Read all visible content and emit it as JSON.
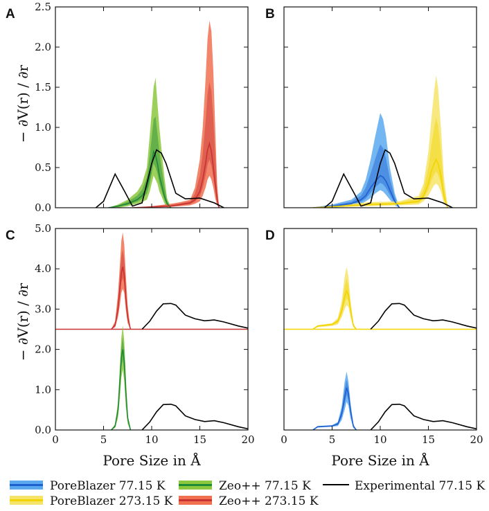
{
  "chart_data": {
    "type": "line",
    "colors": {
      "pb77": "#1f5fd0",
      "pb77_light": "#5aa9ee",
      "pb273": "#f2d400",
      "pb273_light": "#f6e46a",
      "zeo77": "#1e8a36",
      "zeo77_light": "#8cc83e",
      "zeo273": "#c83232",
      "zeo273_light": "#f07050",
      "experimental": "#000000"
    },
    "legend": {
      "placement": "bottom",
      "entries": [
        {
          "key": "pb77",
          "label": "PoreBlazer  77.15 K"
        },
        {
          "key": "pb273",
          "label": "PoreBlazer 273.15 K"
        },
        {
          "key": "zeo77",
          "label": "Zeo++  77.15 K"
        },
        {
          "key": "zeo273",
          "label": "Zeo++ 273.15 K"
        },
        {
          "key": "experimental",
          "label": "Experimental 77.15 K"
        }
      ]
    },
    "xlabel": "Pore Size in Å",
    "ylabel": "− ∂V(r) / ∂r",
    "xlim": [
      0,
      20
    ],
    "xticks": [
      0,
      5,
      10,
      15,
      20
    ],
    "panels": [
      {
        "id": "A",
        "ylim": [
          0,
          2.5
        ],
        "yticks": [
          "0.0",
          "0.5",
          "1.0",
          "1.5",
          "2.0",
          "2.5"
        ],
        "show_x_ticklabels": false,
        "show_y_ticklabels": true,
        "series": [
          {
            "key": "zeo77",
            "kind": "band",
            "offset": 0,
            "x": [
              5.5,
              6.5,
              7.5,
              8.5,
              9.0,
              9.5,
              9.8,
              10.0,
              10.2,
              10.4,
              10.6,
              10.8,
              11.0,
              11.3,
              11.6,
              12.0
            ],
            "mean": [
              0.0,
              0.02,
              0.05,
              0.1,
              0.15,
              0.25,
              0.4,
              0.55,
              0.7,
              0.65,
              0.55,
              0.4,
              0.3,
              0.15,
              0.05,
              0.0
            ],
            "upper": [
              0.0,
              0.04,
              0.1,
              0.2,
              0.3,
              0.5,
              0.9,
              1.2,
              1.5,
              1.62,
              1.3,
              1.0,
              0.75,
              0.4,
              0.12,
              0.0
            ],
            "lower": [
              0.0,
              0.0,
              0.02,
              0.05,
              0.07,
              0.1,
              0.2,
              0.3,
              0.4,
              0.35,
              0.3,
              0.2,
              0.15,
              0.06,
              0.0,
              0.0
            ]
          },
          {
            "key": "zeo273",
            "kind": "band",
            "offset": 0,
            "x": [
              8.0,
              10.0,
              12.0,
              13.0,
              14.0,
              14.5,
              15.0,
              15.3,
              15.6,
              15.8,
              16.0,
              16.2,
              16.4,
              16.6,
              16.8,
              17.0
            ],
            "mean": [
              0.0,
              0.01,
              0.02,
              0.04,
              0.06,
              0.1,
              0.2,
              0.35,
              0.55,
              0.72,
              0.8,
              0.7,
              0.5,
              0.3,
              0.1,
              0.0
            ],
            "upper": [
              0.0,
              0.02,
              0.05,
              0.07,
              0.1,
              0.25,
              0.6,
              1.0,
              1.6,
              2.1,
              2.33,
              2.2,
              1.7,
              1.0,
              0.3,
              0.0
            ],
            "lower": [
              0.0,
              0.0,
              0.01,
              0.02,
              0.03,
              0.05,
              0.08,
              0.15,
              0.25,
              0.35,
              0.4,
              0.35,
              0.25,
              0.12,
              0.03,
              0.0
            ]
          },
          {
            "key": "experimental",
            "kind": "line",
            "offset": 0,
            "x": [
              4.2,
              5.0,
              6.2,
              7.2,
              8.0,
              9.0,
              10.0,
              10.5,
              11.0,
              11.5,
              12.5,
              13.5,
              15.0,
              16.5,
              17.5
            ],
            "y": [
              0.0,
              0.08,
              0.42,
              0.2,
              0.02,
              0.06,
              0.55,
              0.72,
              0.68,
              0.55,
              0.18,
              0.11,
              0.12,
              0.06,
              0.0
            ]
          }
        ]
      },
      {
        "id": "B",
        "ylim": [
          0,
          2.5
        ],
        "yticks": [
          "0.0",
          "0.5",
          "1.0",
          "1.5",
          "2.0",
          "2.5"
        ],
        "show_x_ticklabels": false,
        "show_y_ticklabels": false,
        "series": [
          {
            "key": "pb77",
            "kind": "band",
            "offset": 0,
            "x": [
              3.0,
              5.0,
              7.0,
              8.0,
              8.5,
              9.0,
              9.5,
              10.0,
              10.3,
              10.6,
              11.0,
              11.5,
              12.0
            ],
            "mean": [
              0.0,
              0.02,
              0.05,
              0.1,
              0.15,
              0.25,
              0.33,
              0.4,
              0.38,
              0.33,
              0.22,
              0.08,
              0.0
            ],
            "upper": [
              0.0,
              0.04,
              0.1,
              0.2,
              0.35,
              0.6,
              0.9,
              1.18,
              1.1,
              0.9,
              0.5,
              0.18,
              0.0
            ],
            "lower": [
              0.0,
              0.0,
              0.02,
              0.05,
              0.08,
              0.12,
              0.18,
              0.22,
              0.2,
              0.16,
              0.1,
              0.03,
              0.0
            ]
          },
          {
            "key": "pb273",
            "kind": "band",
            "offset": 0,
            "x": [
              3.0,
              6.0,
              9.0,
              12.0,
              14.0,
              14.5,
              15.0,
              15.3,
              15.6,
              15.8,
              16.0,
              16.3,
              16.6,
              17.0
            ],
            "mean": [
              0.0,
              0.02,
              0.04,
              0.05,
              0.08,
              0.15,
              0.3,
              0.45,
              0.55,
              0.6,
              0.55,
              0.4,
              0.15,
              0.0
            ],
            "upper": [
              0.0,
              0.04,
              0.07,
              0.08,
              0.15,
              0.3,
              0.7,
              1.1,
              1.45,
              1.65,
              1.5,
              1.0,
              0.4,
              0.0
            ],
            "lower": [
              0.0,
              0.01,
              0.02,
              0.03,
              0.04,
              0.08,
              0.15,
              0.22,
              0.28,
              0.3,
              0.28,
              0.2,
              0.06,
              0.0
            ]
          },
          {
            "key": "experimental",
            "kind": "line",
            "offset": 0,
            "x": [
              4.2,
              5.0,
              6.2,
              7.2,
              8.0,
              9.0,
              10.0,
              10.5,
              11.0,
              11.5,
              12.5,
              13.5,
              15.0,
              16.5,
              17.5
            ],
            "y": [
              0.0,
              0.08,
              0.42,
              0.2,
              0.02,
              0.06,
              0.55,
              0.72,
              0.68,
              0.55,
              0.18,
              0.11,
              0.12,
              0.06,
              0.0
            ]
          }
        ]
      },
      {
        "id": "C",
        "ylim": [
          0,
          5.0
        ],
        "yticks": [
          "0.0",
          "1.0",
          "2.0",
          "3.0",
          "4.0",
          "5.0"
        ],
        "show_x_ticklabels": true,
        "show_y_ticklabels": true,
        "series": [
          {
            "key": "zeo77",
            "kind": "band",
            "offset": 0,
            "x": [
              5.8,
              6.2,
              6.5,
              6.7,
              6.85,
              7.0,
              7.15,
              7.3,
              7.5,
              7.8
            ],
            "mean": [
              0.0,
              0.1,
              0.5,
              1.2,
              1.8,
              2.0,
              1.7,
              1.0,
              0.3,
              0.0
            ],
            "upper": [
              0.0,
              0.15,
              0.7,
              1.6,
              2.3,
              2.6,
              2.2,
              1.4,
              0.4,
              0.0
            ],
            "lower": [
              0.0,
              0.05,
              0.3,
              0.8,
              1.3,
              1.5,
              1.2,
              0.6,
              0.15,
              0.0
            ]
          },
          {
            "key": "zeo273",
            "kind": "band",
            "offset": 2.5,
            "x": [
              5.8,
              6.2,
              6.5,
              6.7,
              6.85,
              7.0,
              7.15,
              7.3,
              7.5,
              7.8
            ],
            "mean": [
              0.0,
              0.1,
              0.5,
              1.0,
              1.4,
              1.55,
              1.35,
              0.8,
              0.3,
              0.0
            ],
            "upper": [
              0.0,
              0.2,
              0.9,
              1.6,
              2.2,
              2.4,
              2.1,
              1.4,
              0.6,
              0.0
            ],
            "lower": [
              0.0,
              0.05,
              0.3,
              0.6,
              0.9,
              1.0,
              0.9,
              0.5,
              0.15,
              0.0
            ]
          },
          {
            "key": "experimental",
            "kind": "line",
            "offset": 0,
            "x": [
              9.0,
              9.8,
              10.5,
              11.2,
              12.0,
              12.5,
              13.5,
              14.5,
              15.5,
              16.5,
              17.5,
              19.0,
              20.0
            ],
            "y": [
              0.0,
              0.2,
              0.45,
              0.63,
              0.64,
              0.6,
              0.35,
              0.26,
              0.21,
              0.23,
              0.18,
              0.08,
              0.03
            ]
          },
          {
            "key": "experimental",
            "kind": "line",
            "offset": 2.5,
            "x": [
              9.0,
              9.8,
              10.5,
              11.2,
              12.0,
              12.5,
              13.5,
              14.5,
              15.5,
              16.5,
              17.5,
              19.0,
              20.0
            ],
            "y": [
              0.0,
              0.2,
              0.45,
              0.63,
              0.64,
              0.6,
              0.35,
              0.26,
              0.21,
              0.23,
              0.18,
              0.08,
              0.03
            ]
          }
        ]
      },
      {
        "id": "D",
        "ylim": [
          0,
          5.0
        ],
        "yticks": [
          "0.0",
          "1.0",
          "2.0",
          "3.0",
          "4.0",
          "5.0"
        ],
        "show_x_ticklabels": true,
        "show_y_ticklabels": false,
        "series": [
          {
            "key": "pb77",
            "kind": "band",
            "offset": 0,
            "x": [
              3.0,
              3.5,
              5.0,
              5.6,
              6.0,
              6.3,
              6.5,
              6.7,
              6.9,
              7.2,
              7.5
            ],
            "mean": [
              0.0,
              0.08,
              0.1,
              0.15,
              0.4,
              0.8,
              1.05,
              0.9,
              0.5,
              0.1,
              0.0
            ],
            "upper": [
              0.0,
              0.1,
              0.12,
              0.2,
              0.6,
              1.2,
              1.45,
              1.2,
              0.7,
              0.15,
              0.0
            ],
            "lower": [
              0.0,
              0.06,
              0.08,
              0.1,
              0.25,
              0.5,
              0.7,
              0.6,
              0.3,
              0.05,
              0.0
            ]
          },
          {
            "key": "pb273",
            "kind": "band",
            "offset": 2.5,
            "x": [
              3.0,
              3.5,
              5.0,
              5.6,
              6.0,
              6.3,
              6.5,
              6.7,
              6.9,
              7.2,
              7.5
            ],
            "mean": [
              0.0,
              0.08,
              0.12,
              0.2,
              0.45,
              0.8,
              0.95,
              0.85,
              0.5,
              0.1,
              0.0
            ],
            "upper": [
              0.0,
              0.1,
              0.15,
              0.28,
              0.7,
              1.3,
              1.55,
              1.3,
              0.75,
              0.15,
              0.0
            ],
            "lower": [
              0.0,
              0.05,
              0.08,
              0.12,
              0.3,
              0.5,
              0.6,
              0.55,
              0.3,
              0.05,
              0.0
            ]
          },
          {
            "key": "experimental",
            "kind": "line",
            "offset": 0,
            "x": [
              9.0,
              9.8,
              10.5,
              11.2,
              12.0,
              12.5,
              13.5,
              14.5,
              15.5,
              16.5,
              17.5,
              19.0,
              20.0
            ],
            "y": [
              0.0,
              0.2,
              0.45,
              0.63,
              0.64,
              0.6,
              0.35,
              0.26,
              0.21,
              0.23,
              0.18,
              0.08,
              0.03
            ]
          },
          {
            "key": "experimental",
            "kind": "line",
            "offset": 2.5,
            "x": [
              9.0,
              9.8,
              10.5,
              11.2,
              12.0,
              12.5,
              13.5,
              14.5,
              15.5,
              16.5,
              17.5,
              19.0,
              20.0
            ],
            "y": [
              0.0,
              0.2,
              0.45,
              0.63,
              0.64,
              0.6,
              0.35,
              0.26,
              0.21,
              0.23,
              0.18,
              0.08,
              0.03
            ]
          }
        ]
      }
    ]
  }
}
